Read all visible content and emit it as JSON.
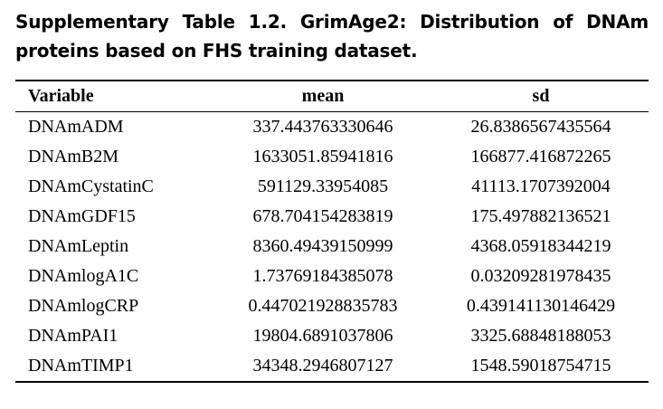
{
  "caption": {
    "line": "Supplementary Table 1.2. GrimAge2: Distribution of DNAm proteins based on FHS training dataset."
  },
  "table": {
    "headers": [
      "Variable",
      "mean",
      "sd"
    ],
    "rows": [
      [
        "DNAmADM",
        "337.443763330646",
        "26.8386567435564"
      ],
      [
        "DNAmB2M",
        "1633051.85941816",
        "166877.416872265"
      ],
      [
        "DNAmCystatinC",
        "591129.33954085",
        "41113.1707392004"
      ],
      [
        "DNAmGDF15",
        "678.704154283819",
        "175.497882136521"
      ],
      [
        "DNAmLeptin",
        "8360.49439150999",
        "4368.05918344219"
      ],
      [
        "DNAmlogA1C",
        "1.73769184385078",
        "0.03209281978435"
      ],
      [
        "DNAmlogCRP",
        "0.447021928835783",
        "0.439141130146429"
      ],
      [
        "DNAmPAI1",
        "19804.6891037806",
        "3325.68848188053"
      ],
      [
        "DNAmTIMP1",
        "34348.2946807127",
        "1548.59018754715"
      ]
    ]
  }
}
